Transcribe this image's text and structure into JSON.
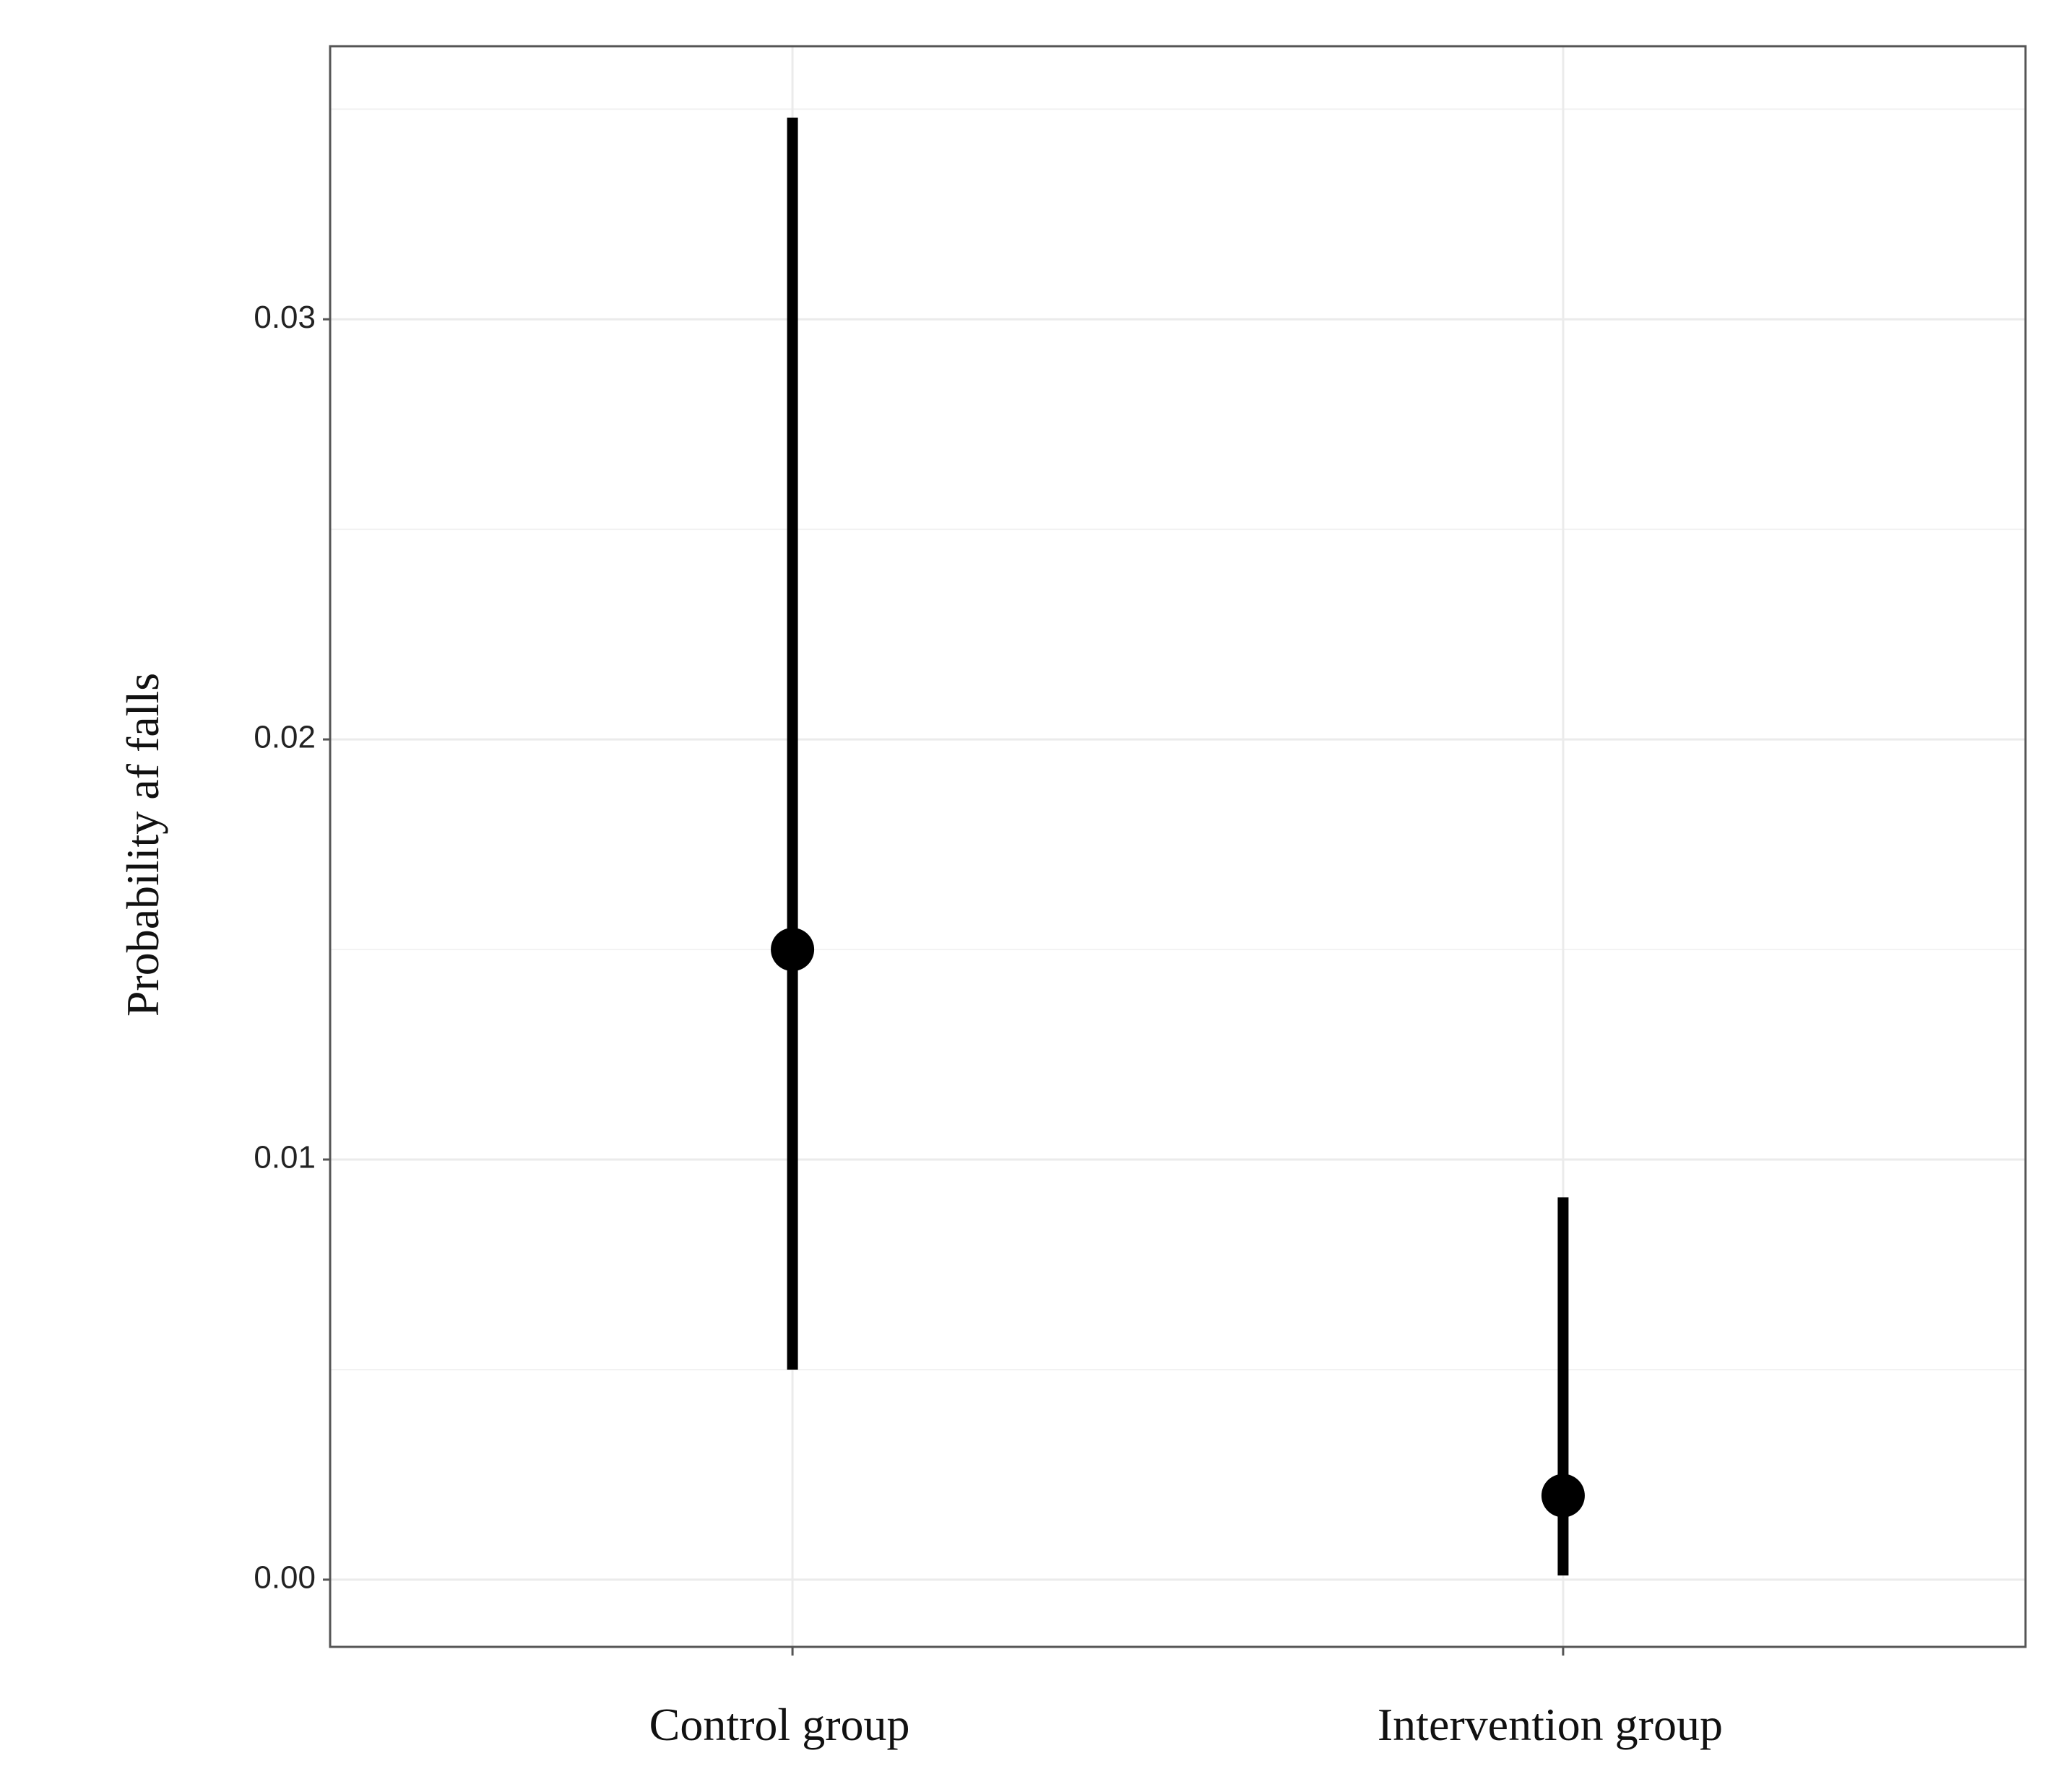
{
  "chart_data": {
    "type": "pointrange",
    "y_label": "Probability af falls",
    "categories": [
      "Control group",
      "Intervention group"
    ],
    "series": [
      {
        "color": "#000000",
        "values": [
          0.015,
          0.002
        ],
        "lower": [
          0.005,
          0.0001
        ],
        "upper": [
          0.0348,
          0.0091
        ]
      }
    ],
    "ylim": [
      -0.0016,
      0.0365
    ],
    "yticks": [
      {
        "value": 0,
        "label": "0.00"
      },
      0.01,
      0.02,
      0.03
    ],
    "minor_yticks": [
      0.005,
      0.015,
      0.025,
      0.035
    ],
    "grid": true
  }
}
